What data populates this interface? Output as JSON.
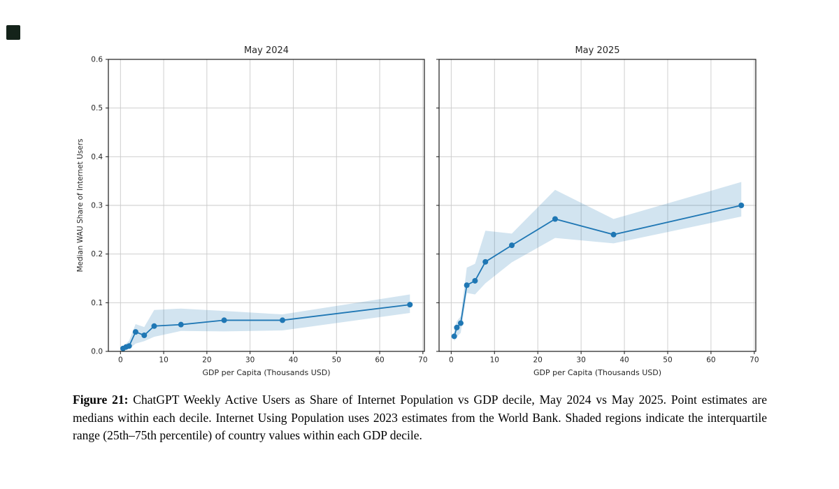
{
  "page": {
    "background": "#ffffff"
  },
  "colors": {
    "line": "#1f77b4",
    "band": "#1f77b4",
    "band_opacity": 0.2,
    "grid": "#c9c9c9",
    "spine": "#1a1a1a",
    "text": "#262626",
    "corner_mark": "#14231a"
  },
  "figure": {
    "shared_xlabel": "GDP per Capita (Thousands USD)",
    "shared_ylabel": "Median WAU Share of Internet Users"
  },
  "chart_data": [
    {
      "type": "line",
      "title": "May 2024",
      "xlabel": "GDP per Capita (Thousands USD)",
      "ylabel": "Median WAU Share of Internet Users",
      "xlim": [
        -2.8,
        70.35
      ],
      "ylim": [
        0,
        0.6
      ],
      "xticks": [
        0,
        10,
        20,
        30,
        40,
        50,
        60,
        70
      ],
      "yticks": [
        0.0,
        0.1,
        0.2,
        0.3,
        0.4,
        0.5,
        0.6
      ],
      "show_yticklabels": true,
      "grid": true,
      "x": [
        0.6,
        1.3,
        2.0,
        3.5,
        5.5,
        7.8,
        14.0,
        24.0,
        37.5,
        67.0
      ],
      "y": [
        0.006,
        0.009,
        0.011,
        0.04,
        0.033,
        0.052,
        0.055,
        0.064,
        0.064,
        0.096
      ],
      "band_low": [
        0.002,
        0.004,
        0.005,
        0.016,
        0.021,
        0.03,
        0.042,
        0.041,
        0.043,
        0.079
      ],
      "band_high": [
        0.011,
        0.016,
        0.022,
        0.056,
        0.05,
        0.085,
        0.088,
        0.083,
        0.076,
        0.117
      ],
      "band_meaning": "interquartile range (25th-75th percentile)"
    },
    {
      "type": "line",
      "title": "May 2025",
      "xlabel": "GDP per Capita (Thousands USD)",
      "ylabel": "",
      "xlim": [
        -2.8,
        70.35
      ],
      "ylim": [
        0,
        0.6
      ],
      "xticks": [
        0,
        10,
        20,
        30,
        40,
        50,
        60,
        70
      ],
      "yticks": [
        0.0,
        0.1,
        0.2,
        0.3,
        0.4,
        0.5,
        0.6
      ],
      "show_yticklabels": false,
      "grid": true,
      "x": [
        0.7,
        1.3,
        2.2,
        3.6,
        5.5,
        7.9,
        14.0,
        24.0,
        37.5,
        67.0
      ],
      "y": [
        0.031,
        0.049,
        0.058,
        0.136,
        0.145,
        0.184,
        0.218,
        0.272,
        0.24,
        0.3
      ],
      "band_low": [
        0.021,
        0.03,
        0.038,
        0.12,
        0.117,
        0.14,
        0.183,
        0.233,
        0.222,
        0.277
      ],
      "band_high": [
        0.048,
        0.062,
        0.072,
        0.172,
        0.18,
        0.248,
        0.242,
        0.332,
        0.272,
        0.348
      ],
      "band_meaning": "interquartile range (25th-75th percentile)"
    }
  ],
  "caption": {
    "label": "Figure 21:",
    "text": "ChatGPT Weekly Active Users as Share of Internet Population vs GDP decile, May 2024 vs May 2025. Point estimates are medians within each decile. Internet Using Population uses 2023 estimates from the World Bank. Shaded regions indicate the interquartile range (25th–75th percentile) of country values within each GDP decile."
  }
}
